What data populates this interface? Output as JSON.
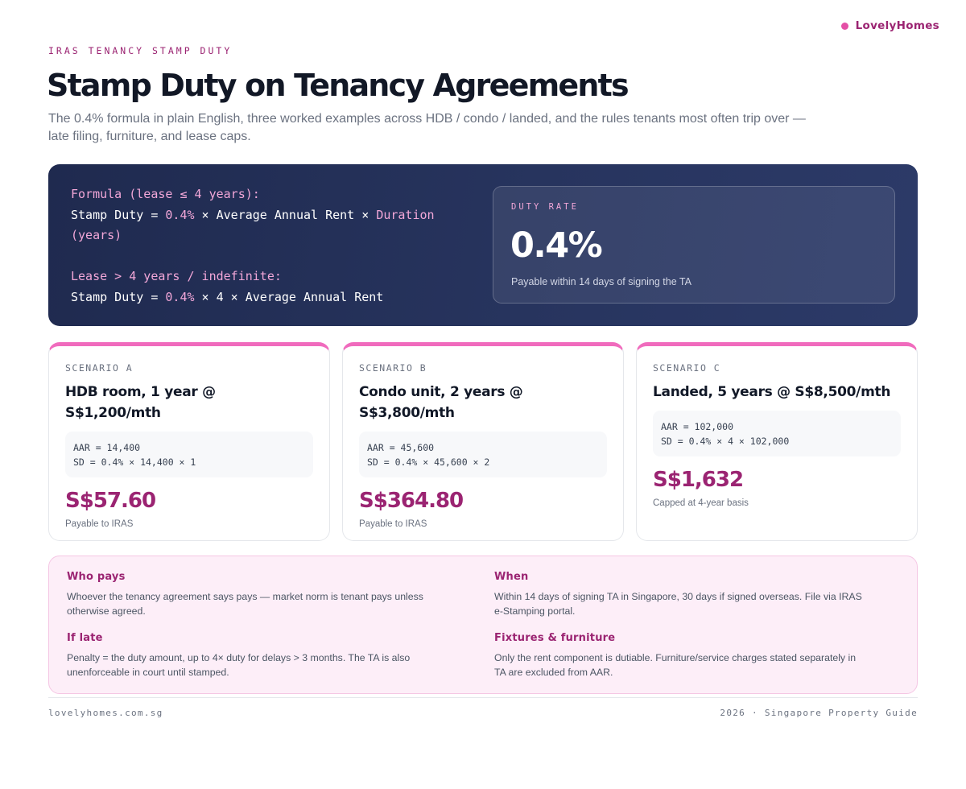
{
  "brand": {
    "name": "LovelyHomes",
    "dot_color": "#e44fa6"
  },
  "header": {
    "eyebrow": "IRAS TENANCY STAMP DUTY",
    "title": "Stamp Duty on Tenancy Agreements",
    "subtitle": "The 0.4% formula in plain English, three worked examples across HDB / condo / landed, and the rules tenants most often trip over — late filing, furniture, and lease caps."
  },
  "hero": {
    "formula": {
      "short_heading": "Formula (lease ≤ 4 years):",
      "short_prefix": "Stamp Duty = ",
      "short_rate": "0.4%",
      "short_mid": " × Average Annual Rent × ",
      "short_duration": "Duration",
      "short_tail": "(years)",
      "long_heading": "Lease > 4 years / indefinite:",
      "long_prefix": "Stamp Duty = ",
      "long_rate": "0.4%",
      "long_tail": " × 4 × Average Annual Rent"
    },
    "rate_card": {
      "label": "DUTY RATE",
      "value": "0.4%",
      "note": "Payable within 14 days of signing the TA"
    }
  },
  "scenarios": [
    {
      "label": "SCENARIO A",
      "title": "HDB room, 1 year @ S$1,200/mth",
      "calc_line1": "AAR = 14,400",
      "calc_line2": "SD = 0.4% × 14,400 × 1",
      "amount": "S$57.60",
      "note": "Payable to IRAS"
    },
    {
      "label": "SCENARIO B",
      "title": "Condo unit, 2 years @ S$3,800/mth",
      "calc_line1": "AAR = 45,600",
      "calc_line2": "SD = 0.4% × 45,600 × 2",
      "amount": "S$364.80",
      "note": "Payable to IRAS"
    },
    {
      "label": "SCENARIO C",
      "title": "Landed, 5 years @ S$8,500/mth",
      "calc_line1": "AAR = 102,000",
      "calc_line2": "SD = 0.4% × 4 × 102,000",
      "amount": "S$1,632",
      "note": "Capped at 4-year basis"
    }
  ],
  "rules": [
    {
      "title": "Who pays",
      "body": "Whoever the tenancy agreement says pays — market norm is tenant pays unless otherwise agreed."
    },
    {
      "title": "When",
      "body": "Within 14 days of signing TA in Singapore, 30 days if signed overseas. File via IRAS e-Stamping portal."
    },
    {
      "title": "If late",
      "body": "Penalty = the duty amount, up to 4× duty for delays > 3 months. The TA is also unenforceable in court until stamped."
    },
    {
      "title": "Fixtures & furniture",
      "body": "Only the rent component is dutiable. Furniture/service charges stated separately in TA are excluded from AAR."
    }
  ],
  "footer": {
    "left": "lovelyhomes.com.sg",
    "right": "2026 · Singapore Property Guide"
  },
  "colors": {
    "accent": "#9b2472",
    "accent_pink": "#f06bbd",
    "hero_bg": "#243057",
    "rules_bg": "#fdeef8"
  }
}
